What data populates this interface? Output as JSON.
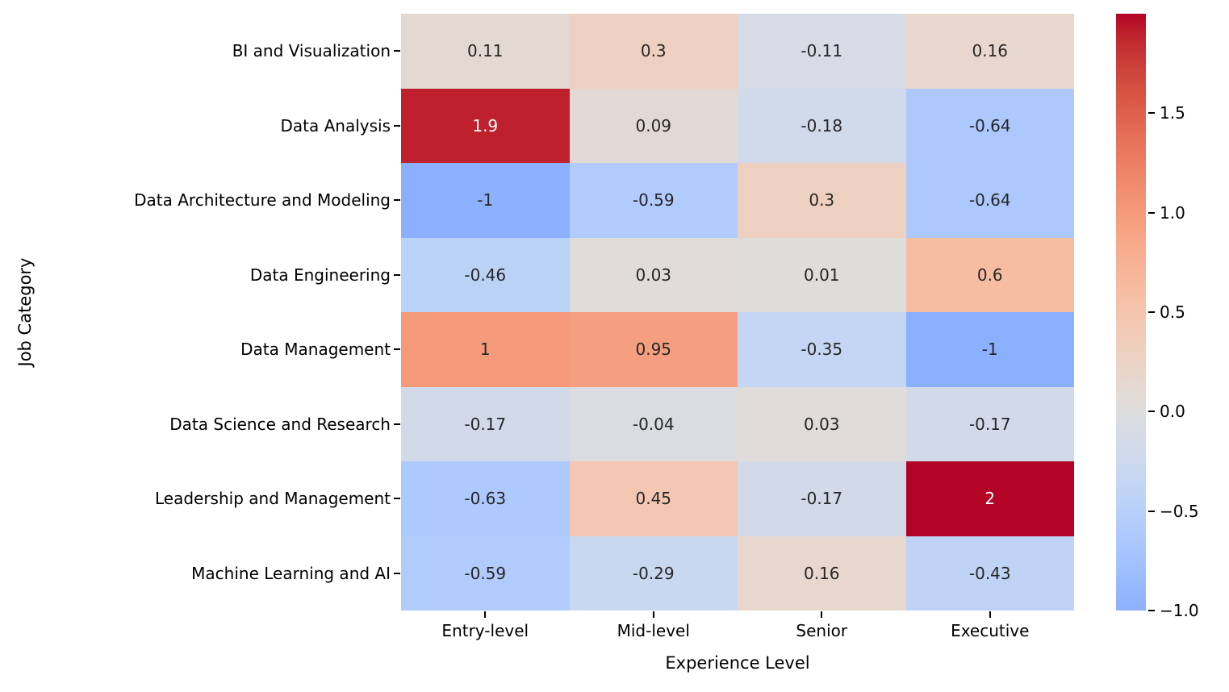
{
  "chart_data": {
    "type": "heatmap",
    "xlabel": "Experience Level",
    "ylabel": "Job Category",
    "x_categories": [
      "Entry-level",
      "Mid-level",
      "Senior",
      "Executive"
    ],
    "y_categories": [
      "BI and Visualization",
      "Data Analysis",
      "Data Architecture and Modeling",
      "Data Engineering",
      "Data Management",
      "Data Science and Research",
      "Leadership and Management",
      "Machine Learning and AI"
    ],
    "values": [
      [
        "0.11",
        "0.3",
        "-0.11",
        "0.16"
      ],
      [
        "1.9",
        "0.09",
        "-0.18",
        "-0.64"
      ],
      [
        "-1",
        "-0.59",
        "0.3",
        "-0.64"
      ],
      [
        "-0.46",
        "0.03",
        "0.01",
        "0.6"
      ],
      [
        "1",
        "0.95",
        "-0.35",
        "-1"
      ],
      [
        "-0.17",
        "-0.04",
        "0.03",
        "-0.17"
      ],
      [
        "-0.63",
        "0.45",
        "-0.17",
        "2"
      ],
      [
        "-0.59",
        "-0.29",
        "0.16",
        "-0.43"
      ]
    ],
    "cmap": "coolwarm",
    "center": 0,
    "vmin": -1,
    "vmax": 2,
    "grid": false,
    "legend_position": "colorbar-right",
    "colorbar_ticks": [
      {
        "value": 1.5,
        "label": "1.5"
      },
      {
        "value": 1.0,
        "label": "1.0"
      },
      {
        "value": 0.5,
        "label": "0.5"
      },
      {
        "value": 0.0,
        "label": "0.0"
      },
      {
        "value": -0.5,
        "label": "−0.5"
      },
      {
        "value": -1.0,
        "label": "−1.0"
      }
    ],
    "colors": {
      "cmap_low": "#3B4CC0",
      "cmap_mid": "#DDDDDD",
      "cmap_high": "#B40426",
      "annot_dark_text": "#262626",
      "annot_light_text": "#FFFFFF",
      "background": "#FFFFFF"
    }
  }
}
